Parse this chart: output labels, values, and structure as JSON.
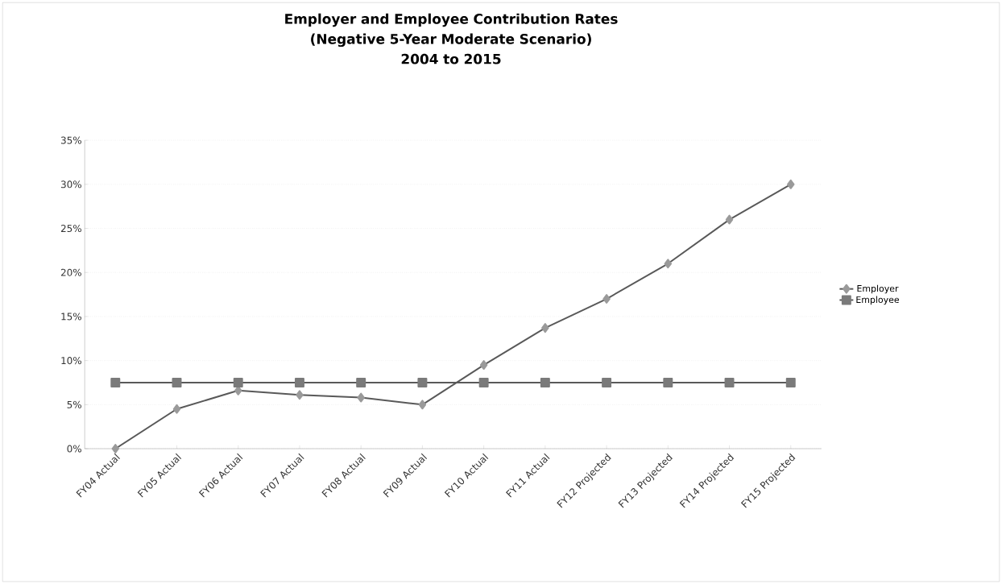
{
  "chart_data": {
    "type": "line",
    "title": "Employer and Employee Contribution Rates",
    "subtitle": "(Negative 5-Year Moderate Scenario)\n2004 to 2015",
    "categories": [
      "FY04 Actual",
      "FY05 Actual",
      "FY06 Actual",
      "FY07 Actual",
      "FY08 Actual",
      "FY09 Actual",
      "FY10 Actual",
      "FY11 Actual",
      "FY12 Projected",
      "FY13 Projected",
      "FY14 Projected",
      "FY15 Projected"
    ],
    "series": [
      {
        "name": "Employer",
        "color": "#9a9a9a",
        "marker": "diamond",
        "values": [
          0,
          4.5,
          6.6,
          6.1,
          5.8,
          5.0,
          9.5,
          13.7,
          17.0,
          21.0,
          26.0,
          30.0
        ]
      },
      {
        "name": "Employee",
        "color": "#7a7a7a",
        "marker": "square",
        "values": [
          7.5,
          7.5,
          7.5,
          7.5,
          7.5,
          7.5,
          7.5,
          7.5,
          7.5,
          7.5,
          7.5,
          7.5
        ]
      }
    ],
    "ylim": [
      0,
      35
    ],
    "yticks": [
      {
        "value": 0,
        "label": "0%"
      },
      {
        "value": 5,
        "label": "5%"
      },
      {
        "value": 10,
        "label": "10%"
      },
      {
        "value": 15,
        "label": "15%"
      },
      {
        "value": 20,
        "label": "20%"
      },
      {
        "value": 25,
        "label": "25%"
      },
      {
        "value": 30,
        "label": "30%"
      },
      {
        "value": 35,
        "label": "35%"
      }
    ],
    "grid": "y",
    "legend": "right"
  }
}
